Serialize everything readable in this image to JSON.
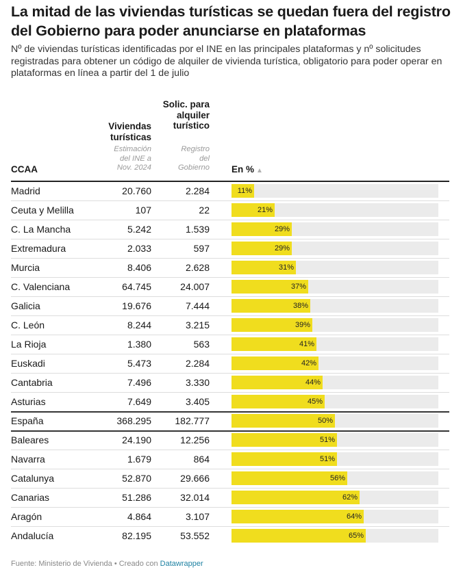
{
  "title": "La mitad de las viviendas turísticas se quedan fuera del registro del Gobierno para poder anunciarse en plataformas",
  "subtitle": "Nº de viviendas turísticas identificadas por el INE en las principales plataformas y nº solicitudes registradas para obtener un código de alquiler de vivienda turística, obligatorio para poder operar en plataformas en línea a partir del 1 de julio",
  "headers": {
    "ccaa": "CCAA",
    "viviendas": "Viviendas turísticas",
    "viviendas_sub": "Estimación del INE a Nov. 2024",
    "solicitudes": "Solic. para alquiler turístico",
    "solicitudes_sub": "Registro del Gobierno",
    "percent": "En %",
    "sort_icon": "triangle-up-icon"
  },
  "footer": {
    "source": "Fuente: Ministerio de Vivienda • Creado con",
    "link": "Datawrapper"
  },
  "colors": {
    "bar": "#f0dd1e",
    "bar_bg": "#ebebeb",
    "link": "#1d81a2"
  },
  "chart_data": {
    "type": "table",
    "columns": [
      "CCAA",
      "Viviendas turísticas",
      "Solic. para alquiler turístico",
      "En %"
    ],
    "percent_range": [
      0,
      100
    ],
    "rows": [
      {
        "ccaa": "Madrid",
        "viviendas": "20.760",
        "solicitudes": "2.284",
        "pct": 11,
        "pct_label": "11%"
      },
      {
        "ccaa": "Ceuta y Melilla",
        "viviendas": "107",
        "solicitudes": "22",
        "pct": 21,
        "pct_label": "21%"
      },
      {
        "ccaa": "C. La Mancha",
        "viviendas": "5.242",
        "solicitudes": "1.539",
        "pct": 29,
        "pct_label": "29%"
      },
      {
        "ccaa": "Extremadura",
        "viviendas": "2.033",
        "solicitudes": "597",
        "pct": 29,
        "pct_label": "29%"
      },
      {
        "ccaa": "Murcia",
        "viviendas": "8.406",
        "solicitudes": "2.628",
        "pct": 31,
        "pct_label": "31%"
      },
      {
        "ccaa": "C. Valenciana",
        "viviendas": "64.745",
        "solicitudes": "24.007",
        "pct": 37,
        "pct_label": "37%"
      },
      {
        "ccaa": "Galicia",
        "viviendas": "19.676",
        "solicitudes": "7.444",
        "pct": 38,
        "pct_label": "38%"
      },
      {
        "ccaa": "C. León",
        "viviendas": "8.244",
        "solicitudes": "3.215",
        "pct": 39,
        "pct_label": "39%"
      },
      {
        "ccaa": "La Rioja",
        "viviendas": "1.380",
        "solicitudes": "563",
        "pct": 41,
        "pct_label": "41%"
      },
      {
        "ccaa": "Euskadi",
        "viviendas": "5.473",
        "solicitudes": "2.284",
        "pct": 42,
        "pct_label": "42%"
      },
      {
        "ccaa": "Cantabria",
        "viviendas": "7.496",
        "solicitudes": "3.330",
        "pct": 44,
        "pct_label": "44%"
      },
      {
        "ccaa": "Asturias",
        "viviendas": "7.649",
        "solicitudes": "3.405",
        "pct": 45,
        "pct_label": "45%"
      },
      {
        "ccaa": "España",
        "viviendas": "368.295",
        "solicitudes": "182.777",
        "pct": 50,
        "pct_label": "50%",
        "highlight": true
      },
      {
        "ccaa": "Baleares",
        "viviendas": "24.190",
        "solicitudes": "12.256",
        "pct": 51,
        "pct_label": "51%"
      },
      {
        "ccaa": "Navarra",
        "viviendas": "1.679",
        "solicitudes": "864",
        "pct": 51,
        "pct_label": "51%"
      },
      {
        "ccaa": "Catalunya",
        "viviendas": "52.870",
        "solicitudes": "29.666",
        "pct": 56,
        "pct_label": "56%"
      },
      {
        "ccaa": "Canarias",
        "viviendas": "51.286",
        "solicitudes": "32.014",
        "pct": 62,
        "pct_label": "62%"
      },
      {
        "ccaa": "Aragón",
        "viviendas": "4.864",
        "solicitudes": "3.107",
        "pct": 64,
        "pct_label": "64%"
      },
      {
        "ccaa": "Andalucía",
        "viviendas": "82.195",
        "solicitudes": "53.552",
        "pct": 65,
        "pct_label": "65%"
      }
    ]
  }
}
